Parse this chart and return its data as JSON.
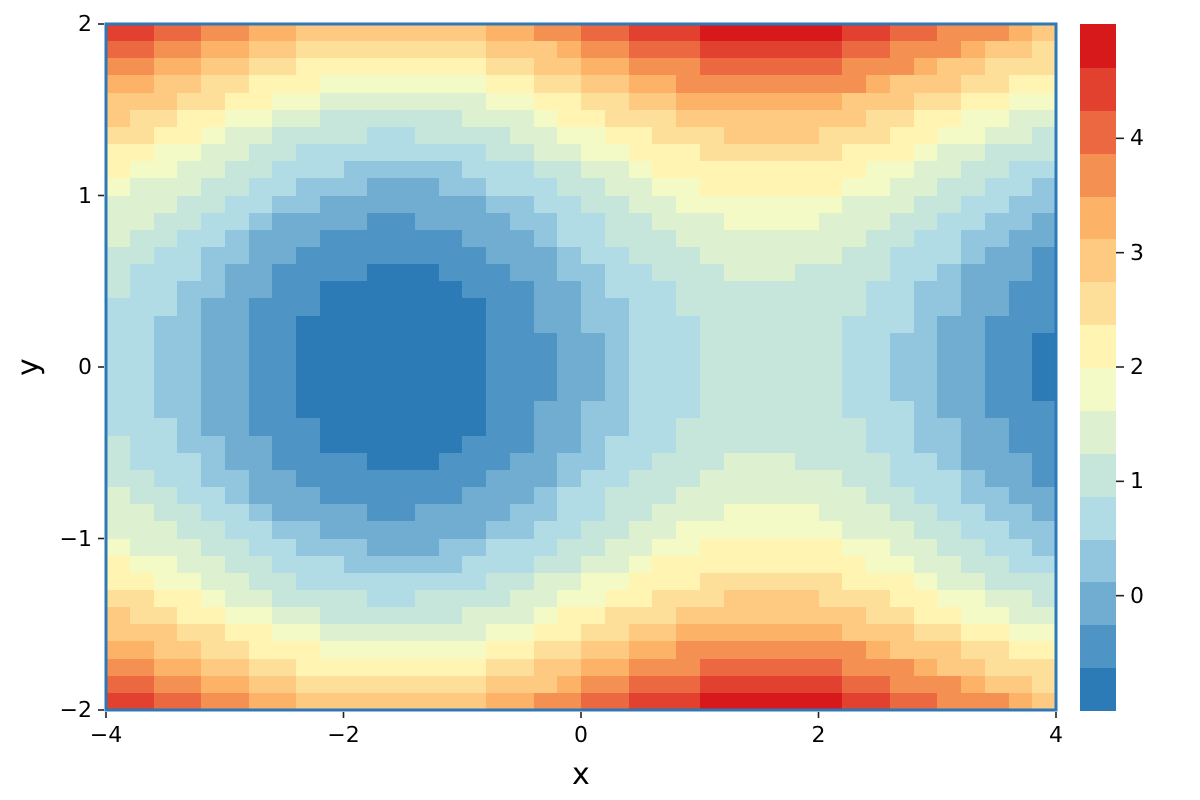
{
  "chart_data": {
    "type": "heatmap",
    "xlabel": "x",
    "ylabel": "y",
    "xlim": [
      -4,
      4
    ],
    "ylim": [
      -2,
      2
    ],
    "xticks": [
      -4,
      -2,
      0,
      2,
      4
    ],
    "yticks": [
      -2,
      -1,
      0,
      1,
      2
    ],
    "clim": [
      -1,
      5
    ],
    "cticks": [
      0,
      1,
      2,
      3,
      4
    ],
    "cells": [
      [
        4.5,
        4.3,
        4.2,
        4.0,
        3.8,
        3.6,
        3.4,
        3.2,
        3.1,
        2.9,
        2.9,
        2.8,
        2.8,
        2.8,
        2.9,
        3.0,
        3.2,
        3.3,
        3.5,
        3.7,
        3.9,
        4.1,
        4.3,
        4.4,
        4.6,
        4.7,
        4.8,
        4.8,
        4.8,
        4.7,
        4.7,
        4.5,
        4.4,
        4.2,
        4.0,
        3.8,
        3.6,
        3.5,
        3.3,
        3.1
      ],
      [
        4.1,
        4.0,
        3.8,
        3.6,
        3.4,
        3.2,
        3.0,
        2.8,
        2.7,
        2.6,
        2.5,
        2.4,
        2.4,
        2.5,
        2.5,
        2.6,
        2.8,
        2.9,
        3.1,
        3.3,
        3.5,
        3.7,
        3.9,
        4.1,
        4.2,
        4.3,
        4.4,
        4.4,
        4.4,
        4.4,
        4.3,
        4.2,
        4.0,
        3.8,
        3.7,
        3.5,
        3.3,
        3.1,
        2.9,
        2.7
      ],
      [
        3.8,
        3.6,
        3.4,
        3.2,
        3.0,
        2.8,
        2.6,
        2.5,
        2.3,
        2.2,
        2.1,
        2.1,
        2.1,
        2.1,
        2.2,
        2.3,
        2.4,
        2.6,
        2.8,
        3.0,
        3.2,
        3.4,
        3.5,
        3.7,
        3.8,
        4.0,
        4.0,
        4.1,
        4.1,
        4.0,
        3.9,
        3.8,
        3.7,
        3.5,
        3.3,
        3.1,
        2.9,
        2.7,
        2.5,
        2.4
      ],
      [
        3.4,
        3.3,
        3.1,
        2.9,
        2.7,
        2.5,
        2.3,
        2.1,
        2.0,
        1.9,
        1.8,
        1.7,
        1.7,
        1.8,
        1.8,
        1.9,
        2.1,
        2.2,
        2.4,
        2.6,
        2.8,
        3.0,
        3.2,
        3.4,
        3.5,
        3.6,
        3.7,
        3.7,
        3.7,
        3.7,
        3.6,
        3.5,
        3.3,
        3.1,
        3.0,
        2.8,
        2.6,
        2.4,
        2.2,
        2.0
      ],
      [
        3.1,
        2.9,
        2.8,
        2.6,
        2.4,
        2.2,
        2.0,
        1.8,
        1.7,
        1.5,
        1.5,
        1.4,
        1.4,
        1.4,
        1.5,
        1.6,
        1.8,
        1.9,
        2.1,
        2.3,
        2.5,
        2.7,
        2.9,
        3.0,
        3.2,
        3.3,
        3.4,
        3.4,
        3.4,
        3.3,
        3.3,
        3.1,
        3.0,
        2.8,
        2.6,
        2.4,
        2.2,
        2.1,
        1.9,
        1.7
      ],
      [
        2.8,
        2.6,
        2.5,
        2.3,
        2.1,
        1.9,
        1.7,
        1.5,
        1.4,
        1.2,
        1.2,
        1.1,
        1.1,
        1.1,
        1.2,
        1.3,
        1.5,
        1.6,
        1.8,
        2.0,
        2.2,
        2.4,
        2.6,
        2.7,
        2.9,
        3.0,
        3.1,
        3.1,
        3.1,
        3.0,
        3.0,
        2.8,
        2.7,
        2.5,
        2.3,
        2.1,
        1.9,
        1.8,
        1.6,
        1.4
      ],
      [
        2.5,
        2.4,
        2.2,
        2.0,
        1.8,
        1.6,
        1.4,
        1.2,
        1.1,
        1.0,
        0.9,
        0.8,
        0.8,
        0.9,
        0.9,
        1.0,
        1.2,
        1.3,
        1.5,
        1.7,
        1.9,
        2.1,
        2.3,
        2.5,
        2.6,
        2.7,
        2.8,
        2.8,
        2.8,
        2.8,
        2.7,
        2.6,
        2.4,
        2.2,
        2.1,
        1.9,
        1.7,
        1.5,
        1.3,
        1.1
      ],
      [
        2.3,
        2.1,
        1.9,
        1.7,
        1.5,
        1.3,
        1.1,
        1.0,
        0.8,
        0.7,
        0.6,
        0.6,
        0.6,
        0.6,
        0.7,
        0.8,
        0.9,
        1.1,
        1.3,
        1.5,
        1.7,
        1.9,
        2.0,
        2.2,
        2.3,
        2.5,
        2.5,
        2.6,
        2.6,
        2.5,
        2.4,
        2.3,
        2.2,
        2.0,
        1.8,
        1.6,
        1.4,
        1.2,
        1.0,
        0.9
      ],
      [
        2.0,
        1.9,
        1.7,
        1.5,
        1.3,
        1.1,
        0.9,
        0.7,
        0.6,
        0.5,
        0.4,
        0.3,
        0.3,
        0.4,
        0.4,
        0.5,
        0.7,
        0.8,
        1.0,
        1.2,
        1.4,
        1.6,
        1.8,
        2.0,
        2.1,
        2.2,
        2.3,
        2.3,
        2.3,
        2.3,
        2.2,
        2.1,
        1.9,
        1.7,
        1.6,
        1.4,
        1.2,
        1.0,
        0.8,
        0.6
      ],
      [
        1.8,
        1.6,
        1.5,
        1.3,
        1.1,
        0.9,
        0.7,
        0.5,
        0.4,
        0.2,
        0.2,
        0.1,
        0.1,
        0.1,
        0.2,
        0.3,
        0.5,
        0.6,
        0.8,
        1.0,
        1.2,
        1.4,
        1.6,
        1.7,
        1.9,
        2.0,
        2.1,
        2.1,
        2.1,
        2.0,
        2.0,
        1.8,
        1.7,
        1.5,
        1.3,
        1.1,
        0.9,
        0.8,
        0.6,
        0.4
      ],
      [
        1.6,
        1.4,
        1.3,
        1.1,
        0.9,
        0.7,
        0.5,
        0.3,
        0.2,
        0.0,
        0.0,
        -0.1,
        -0.1,
        -0.1,
        0.0,
        0.1,
        0.3,
        0.4,
        0.6,
        0.8,
        1.0,
        1.2,
        1.4,
        1.5,
        1.7,
        1.8,
        1.9,
        1.9,
        1.9,
        1.8,
        1.8,
        1.6,
        1.5,
        1.3,
        1.1,
        0.9,
        0.7,
        0.6,
        0.4,
        0.2
      ],
      [
        1.4,
        1.3,
        1.1,
        0.9,
        0.7,
        0.5,
        0.3,
        0.1,
        0.0,
        -0.1,
        -0.2,
        -0.3,
        -0.3,
        -0.2,
        -0.2,
        -0.1,
        0.1,
        0.2,
        0.4,
        0.6,
        0.8,
        1.0,
        1.2,
        1.4,
        1.5,
        1.6,
        1.7,
        1.7,
        1.7,
        1.7,
        1.6,
        1.5,
        1.3,
        1.1,
        1.0,
        0.8,
        0.6,
        0.4,
        0.2,
        0.0
      ],
      [
        1.3,
        1.1,
        0.9,
        0.7,
        0.5,
        0.3,
        0.1,
        0.0,
        -0.2,
        -0.3,
        -0.4,
        -0.4,
        -0.4,
        -0.4,
        -0.3,
        -0.2,
        -0.1,
        0.1,
        0.3,
        0.5,
        0.7,
        0.9,
        1.0,
        1.2,
        1.3,
        1.5,
        1.5,
        1.6,
        1.6,
        1.5,
        1.4,
        1.3,
        1.2,
        1.0,
        0.8,
        0.6,
        0.4,
        0.2,
        0.0,
        -0.1
      ],
      [
        1.1,
        1.0,
        0.8,
        0.6,
        0.4,
        0.2,
        0.0,
        -0.2,
        -0.3,
        -0.4,
        -0.5,
        -0.6,
        -0.6,
        -0.5,
        -0.5,
        -0.4,
        -0.2,
        -0.1,
        0.1,
        0.3,
        0.5,
        0.7,
        0.9,
        1.1,
        1.2,
        1.3,
        1.4,
        1.4,
        1.4,
        1.4,
        1.3,
        1.2,
        1.0,
        0.8,
        0.7,
        0.5,
        0.3,
        0.1,
        -0.1,
        -0.3
      ],
      [
        1.0,
        0.8,
        0.7,
        0.5,
        0.3,
        0.1,
        -0.1,
        -0.3,
        -0.4,
        -0.6,
        -0.6,
        -0.7,
        -0.7,
        -0.7,
        -0.6,
        -0.5,
        -0.3,
        -0.2,
        0.0,
        0.2,
        0.4,
        0.6,
        0.8,
        0.9,
        1.1,
        1.2,
        1.3,
        1.3,
        1.3,
        1.2,
        1.2,
        1.0,
        0.9,
        0.7,
        0.5,
        0.3,
        0.1,
        0.0,
        -0.2,
        -0.4
      ],
      [
        0.9,
        0.7,
        0.6,
        0.4,
        0.2,
        0.0,
        -0.2,
        -0.4,
        -0.5,
        -0.7,
        -0.7,
        -0.8,
        -0.8,
        -0.8,
        -0.7,
        -0.6,
        -0.4,
        -0.3,
        -0.1,
        0.1,
        0.3,
        0.5,
        0.7,
        0.8,
        1.0,
        1.1,
        1.2,
        1.2,
        1.2,
        1.1,
        1.1,
        0.9,
        0.8,
        0.6,
        0.4,
        0.2,
        0.0,
        -0.1,
        -0.3,
        -0.5
      ],
      [
        0.8,
        0.7,
        0.5,
        0.3,
        0.1,
        -0.1,
        -0.3,
        -0.5,
        -0.6,
        -0.7,
        -0.8,
        -0.9,
        -0.9,
        -0.8,
        -0.8,
        -0.7,
        -0.5,
        -0.4,
        -0.2,
        0.0,
        0.2,
        0.4,
        0.6,
        0.8,
        0.9,
        1.0,
        1.1,
        1.1,
        1.1,
        1.1,
        1.0,
        0.9,
        0.7,
        0.5,
        0.4,
        0.2,
        0.0,
        -0.2,
        -0.4,
        -0.6
      ],
      [
        0.8,
        0.6,
        0.4,
        0.2,
        0.0,
        -0.2,
        -0.4,
        -0.5,
        -0.7,
        -0.8,
        -0.9,
        -0.9,
        -0.9,
        -0.9,
        -0.8,
        -0.7,
        -0.6,
        -0.4,
        -0.2,
        0.0,
        0.2,
        0.4,
        0.5,
        0.7,
        0.8,
        1.0,
        1.0,
        1.1,
        1.1,
        1.0,
        0.9,
        0.8,
        0.7,
        0.5,
        0.3,
        0.1,
        -0.1,
        -0.3,
        -0.5,
        -0.6
      ],
      [
        0.7,
        0.6,
        0.4,
        0.2,
        0.0,
        -0.2,
        -0.4,
        -0.6,
        -0.7,
        -0.8,
        -0.9,
        -1.0,
        -1.0,
        -0.9,
        -0.9,
        -0.8,
        -0.6,
        -0.5,
        -0.3,
        -0.1,
        0.1,
        0.3,
        0.5,
        0.7,
        0.8,
        0.9,
        1.0,
        1.0,
        1.0,
        1.0,
        0.9,
        0.8,
        0.6,
        0.4,
        0.3,
        0.1,
        -0.1,
        -0.3,
        -0.5,
        -0.7
      ],
      [
        0.7,
        0.5,
        0.4,
        0.2,
        0.0,
        -0.2,
        -0.4,
        -0.6,
        -0.7,
        -0.9,
        -0.9,
        -1.0,
        -1.0,
        -1.0,
        -0.9,
        -0.8,
        -0.6,
        -0.5,
        -0.3,
        -0.1,
        0.1,
        0.3,
        0.5,
        0.6,
        0.8,
        0.9,
        1.0,
        1.0,
        1.0,
        0.9,
        0.9,
        0.7,
        0.6,
        0.4,
        0.2,
        0.0,
        -0.2,
        -0.3,
        -0.5,
        -0.7
      ],
      [
        0.7,
        0.5,
        0.4,
        0.2,
        0.0,
        -0.2,
        -0.4,
        -0.6,
        -0.7,
        -0.9,
        -0.9,
        -1.0,
        -1.0,
        -1.0,
        -0.9,
        -0.8,
        -0.6,
        -0.5,
        -0.3,
        -0.1,
        0.1,
        0.3,
        0.5,
        0.6,
        0.8,
        0.9,
        1.0,
        1.0,
        1.0,
        0.9,
        0.9,
        0.7,
        0.6,
        0.4,
        0.2,
        0.0,
        -0.2,
        -0.3,
        -0.5,
        -0.7
      ],
      [
        0.7,
        0.6,
        0.4,
        0.2,
        0.0,
        -0.2,
        -0.4,
        -0.6,
        -0.7,
        -0.8,
        -0.9,
        -1.0,
        -1.0,
        -0.9,
        -0.9,
        -0.8,
        -0.6,
        -0.5,
        -0.3,
        -0.1,
        0.1,
        0.3,
        0.5,
        0.7,
        0.8,
        0.9,
        1.0,
        1.0,
        1.0,
        1.0,
        0.9,
        0.8,
        0.6,
        0.4,
        0.3,
        0.1,
        -0.1,
        -0.3,
        -0.5,
        -0.7
      ],
      [
        0.8,
        0.6,
        0.4,
        0.2,
        0.0,
        -0.2,
        -0.4,
        -0.5,
        -0.7,
        -0.8,
        -0.9,
        -0.9,
        -0.9,
        -0.9,
        -0.8,
        -0.7,
        -0.6,
        -0.4,
        -0.2,
        0.0,
        0.2,
        0.4,
        0.5,
        0.7,
        0.8,
        1.0,
        1.0,
        1.1,
        1.1,
        1.0,
        0.9,
        0.8,
        0.7,
        0.5,
        0.3,
        0.1,
        -0.1,
        -0.3,
        -0.5,
        -0.6
      ],
      [
        0.8,
        0.7,
        0.5,
        0.3,
        0.1,
        -0.1,
        -0.3,
        -0.5,
        -0.6,
        -0.7,
        -0.8,
        -0.9,
        -0.9,
        -0.8,
        -0.8,
        -0.7,
        -0.5,
        -0.4,
        -0.2,
        0.0,
        0.2,
        0.4,
        0.6,
        0.8,
        0.9,
        1.0,
        1.1,
        1.1,
        1.1,
        1.1,
        1.0,
        0.9,
        0.7,
        0.5,
        0.4,
        0.2,
        0.0,
        -0.2,
        -0.4,
        -0.6
      ],
      [
        0.9,
        0.7,
        0.6,
        0.4,
        0.2,
        0.0,
        -0.2,
        -0.4,
        -0.5,
        -0.7,
        -0.7,
        -0.8,
        -0.8,
        -0.8,
        -0.7,
        -0.6,
        -0.4,
        -0.3,
        -0.1,
        0.1,
        0.3,
        0.5,
        0.7,
        0.8,
        1.0,
        1.1,
        1.2,
        1.2,
        1.2,
        1.1,
        1.1,
        0.9,
        0.8,
        0.6,
        0.4,
        0.2,
        0.0,
        -0.1,
        -0.3,
        -0.5
      ],
      [
        1.0,
        0.8,
        0.7,
        0.5,
        0.3,
        0.1,
        -0.1,
        -0.3,
        -0.4,
        -0.6,
        -0.6,
        -0.7,
        -0.7,
        -0.7,
        -0.6,
        -0.5,
        -0.3,
        -0.2,
        0.0,
        0.2,
        0.4,
        0.6,
        0.8,
        0.9,
        1.1,
        1.2,
        1.3,
        1.3,
        1.3,
        1.2,
        1.2,
        1.0,
        0.9,
        0.7,
        0.5,
        0.3,
        0.1,
        0.0,
        -0.2,
        -0.4
      ],
      [
        1.1,
        1.0,
        0.8,
        0.6,
        0.4,
        0.2,
        0.0,
        -0.2,
        -0.3,
        -0.4,
        -0.5,
        -0.6,
        -0.6,
        -0.5,
        -0.5,
        -0.4,
        -0.2,
        -0.1,
        0.1,
        0.3,
        0.5,
        0.7,
        0.9,
        1.1,
        1.2,
        1.3,
        1.4,
        1.4,
        1.4,
        1.4,
        1.3,
        1.2,
        1.0,
        0.8,
        0.7,
        0.5,
        0.3,
        0.1,
        -0.1,
        -0.3
      ],
      [
        1.3,
        1.1,
        0.9,
        0.7,
        0.5,
        0.3,
        0.1,
        0.0,
        -0.2,
        -0.3,
        -0.4,
        -0.4,
        -0.4,
        -0.4,
        -0.3,
        -0.2,
        -0.1,
        0.1,
        0.3,
        0.5,
        0.7,
        0.9,
        1.0,
        1.2,
        1.3,
        1.5,
        1.5,
        1.6,
        1.6,
        1.5,
        1.4,
        1.3,
        1.2,
        1.0,
        0.8,
        0.6,
        0.4,
        0.2,
        0.0,
        -0.1
      ],
      [
        1.4,
        1.3,
        1.1,
        0.9,
        0.7,
        0.5,
        0.3,
        0.1,
        0.0,
        -0.1,
        -0.2,
        -0.3,
        -0.3,
        -0.2,
        -0.2,
        -0.1,
        0.1,
        0.2,
        0.4,
        0.6,
        0.8,
        1.0,
        1.2,
        1.4,
        1.5,
        1.6,
        1.7,
        1.7,
        1.7,
        1.7,
        1.6,
        1.5,
        1.3,
        1.1,
        1.0,
        0.8,
        0.6,
        0.4,
        0.2,
        0.0
      ],
      [
        1.6,
        1.4,
        1.3,
        1.1,
        0.9,
        0.7,
        0.5,
        0.3,
        0.2,
        0.0,
        0.0,
        -0.1,
        -0.1,
        -0.1,
        0.0,
        0.1,
        0.3,
        0.4,
        0.6,
        0.8,
        1.0,
        1.2,
        1.4,
        1.5,
        1.7,
        1.8,
        1.9,
        1.9,
        1.9,
        1.8,
        1.8,
        1.6,
        1.5,
        1.3,
        1.1,
        0.9,
        0.7,
        0.6,
        0.4,
        0.2
      ],
      [
        1.8,
        1.6,
        1.5,
        1.3,
        1.1,
        0.9,
        0.7,
        0.5,
        0.4,
        0.2,
        0.2,
        0.1,
        0.1,
        0.1,
        0.2,
        0.3,
        0.5,
        0.6,
        0.8,
        1.0,
        1.2,
        1.4,
        1.6,
        1.7,
        1.9,
        2.0,
        2.1,
        2.1,
        2.1,
        2.0,
        2.0,
        1.8,
        1.7,
        1.5,
        1.3,
        1.1,
        0.9,
        0.8,
        0.6,
        0.4
      ],
      [
        2.0,
        1.9,
        1.7,
        1.5,
        1.3,
        1.1,
        0.9,
        0.7,
        0.6,
        0.5,
        0.4,
        0.3,
        0.3,
        0.4,
        0.4,
        0.5,
        0.7,
        0.8,
        1.0,
        1.2,
        1.4,
        1.6,
        1.8,
        2.0,
        2.1,
        2.2,
        2.3,
        2.3,
        2.3,
        2.3,
        2.2,
        2.1,
        1.9,
        1.7,
        1.6,
        1.4,
        1.2,
        1.0,
        0.8,
        0.6
      ],
      [
        2.3,
        2.1,
        1.9,
        1.7,
        1.5,
        1.3,
        1.1,
        1.0,
        0.8,
        0.7,
        0.6,
        0.6,
        0.6,
        0.6,
        0.7,
        0.8,
        0.9,
        1.1,
        1.3,
        1.5,
        1.7,
        1.9,
        2.0,
        2.2,
        2.3,
        2.5,
        2.5,
        2.6,
        2.6,
        2.5,
        2.4,
        2.3,
        2.2,
        2.0,
        1.8,
        1.6,
        1.4,
        1.2,
        1.0,
        0.9
      ],
      [
        2.5,
        2.4,
        2.2,
        2.0,
        1.8,
        1.6,
        1.4,
        1.2,
        1.1,
        1.0,
        0.9,
        0.8,
        0.8,
        0.9,
        0.9,
        1.0,
        1.2,
        1.3,
        1.5,
        1.7,
        1.9,
        2.1,
        2.3,
        2.5,
        2.6,
        2.7,
        2.8,
        2.8,
        2.8,
        2.8,
        2.7,
        2.6,
        2.4,
        2.2,
        2.1,
        1.9,
        1.7,
        1.5,
        1.3,
        1.1
      ],
      [
        2.8,
        2.6,
        2.5,
        2.3,
        2.1,
        1.9,
        1.7,
        1.5,
        1.4,
        1.2,
        1.2,
        1.1,
        1.1,
        1.1,
        1.2,
        1.3,
        1.5,
        1.6,
        1.8,
        2.0,
        2.2,
        2.4,
        2.6,
        2.7,
        2.9,
        3.0,
        3.1,
        3.1,
        3.1,
        3.0,
        3.0,
        2.8,
        2.7,
        2.5,
        2.3,
        2.1,
        1.9,
        1.8,
        1.6,
        1.4
      ],
      [
        3.1,
        2.9,
        2.8,
        2.6,
        2.4,
        2.2,
        2.0,
        1.8,
        1.7,
        1.5,
        1.5,
        1.4,
        1.4,
        1.4,
        1.5,
        1.6,
        1.8,
        1.9,
        2.1,
        2.3,
        2.5,
        2.7,
        2.9,
        3.0,
        3.2,
        3.3,
        3.4,
        3.4,
        3.4,
        3.3,
        3.3,
        3.1,
        3.0,
        2.8,
        2.6,
        2.4,
        2.2,
        2.1,
        1.9,
        1.7
      ],
      [
        3.4,
        3.3,
        3.1,
        2.9,
        2.7,
        2.5,
        2.3,
        2.1,
        2.0,
        1.9,
        1.8,
        1.7,
        1.7,
        1.8,
        1.8,
        1.9,
        2.1,
        2.2,
        2.4,
        2.6,
        2.8,
        3.0,
        3.2,
        3.4,
        3.5,
        3.6,
        3.7,
        3.7,
        3.7,
        3.7,
        3.6,
        3.5,
        3.3,
        3.1,
        3.0,
        2.8,
        2.6,
        2.4,
        2.2,
        2.0
      ],
      [
        3.8,
        3.6,
        3.4,
        3.2,
        3.0,
        2.8,
        2.6,
        2.5,
        2.3,
        2.2,
        2.1,
        2.1,
        2.1,
        2.1,
        2.2,
        2.3,
        2.4,
        2.6,
        2.8,
        3.0,
        3.2,
        3.4,
        3.5,
        3.7,
        3.8,
        4.0,
        4.0,
        4.1,
        4.1,
        4.0,
        3.9,
        3.8,
        3.7,
        3.5,
        3.3,
        3.1,
        2.9,
        2.7,
        2.5,
        2.4
      ],
      [
        4.1,
        4.0,
        3.8,
        3.6,
        3.4,
        3.2,
        3.0,
        2.8,
        2.7,
        2.6,
        2.5,
        2.4,
        2.4,
        2.5,
        2.5,
        2.6,
        2.8,
        2.9,
        3.1,
        3.3,
        3.5,
        3.7,
        3.9,
        4.1,
        4.2,
        4.3,
        4.4,
        4.4,
        4.4,
        4.4,
        4.3,
        4.2,
        4.0,
        3.8,
        3.7,
        3.5,
        3.3,
        3.1,
        2.9,
        2.7
      ],
      [
        4.5,
        4.3,
        4.2,
        4.0,
        3.8,
        3.6,
        3.4,
        3.2,
        3.1,
        2.9,
        2.9,
        2.8,
        2.8,
        2.8,
        2.9,
        3.0,
        3.2,
        3.3,
        3.5,
        3.7,
        3.9,
        4.1,
        4.3,
        4.4,
        4.6,
        4.7,
        4.8,
        4.8,
        4.8,
        4.7,
        4.7,
        4.5,
        4.4,
        4.2,
        4.0,
        3.8,
        3.6,
        3.5,
        3.3,
        3.1
      ]
    ]
  }
}
